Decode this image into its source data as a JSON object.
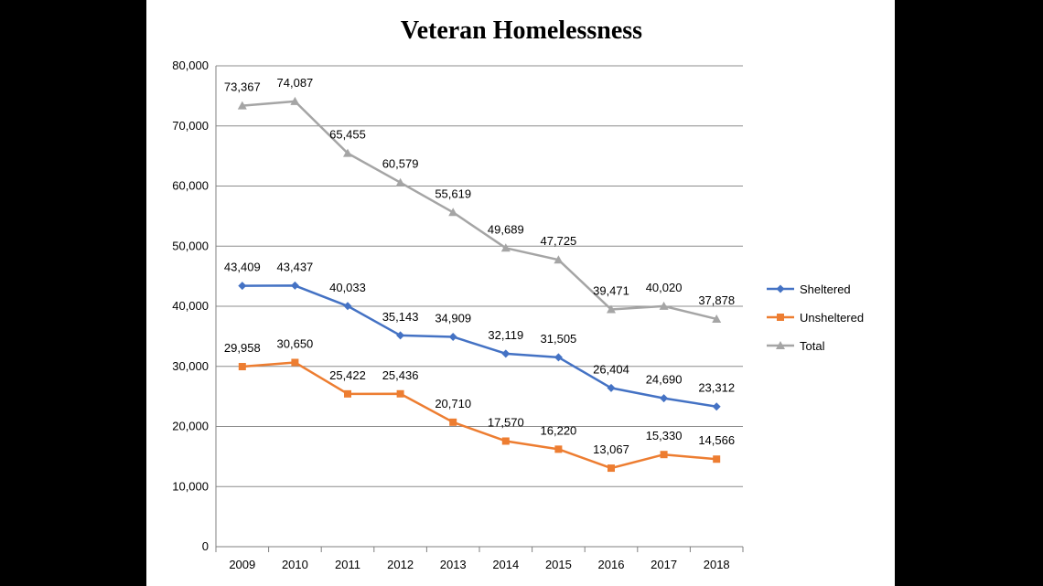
{
  "chart_data": {
    "type": "line",
    "title": "Veteran Homelessness",
    "xlabel": "",
    "ylabel": "",
    "categories": [
      "2009",
      "2010",
      "2011",
      "2012",
      "2013",
      "2014",
      "2015",
      "2016",
      "2017",
      "2018"
    ],
    "ylim": [
      0,
      80000
    ],
    "yticks": [
      0,
      10000,
      20000,
      30000,
      40000,
      50000,
      60000,
      70000,
      80000
    ],
    "ytick_labels": [
      "0",
      "10,000",
      "20,000",
      "30,000",
      "40,000",
      "50,000",
      "60,000",
      "70,000",
      "80,000"
    ],
    "grid": true,
    "legend_position": "right",
    "series": [
      {
        "name": "Sheltered",
        "color": "#4472C4",
        "marker": "diamond",
        "values": [
          43409,
          43437,
          40033,
          35143,
          34909,
          32119,
          31505,
          26404,
          24690,
          23312
        ],
        "labels": [
          "43,409",
          "43,437",
          "40,033",
          "35,143",
          "34,909",
          "32,119",
          "31,505",
          "26,404",
          "24,690",
          "23,312"
        ]
      },
      {
        "name": "Unsheltered",
        "color": "#ED7D31",
        "marker": "square",
        "values": [
          29958,
          30650,
          25422,
          25436,
          20710,
          17570,
          16220,
          13067,
          15330,
          14566
        ],
        "labels": [
          "29,958",
          "30,650",
          "25,422",
          "25,436",
          "20,710",
          "17,570",
          "16,220",
          "13,067",
          "15,330",
          "14,566"
        ]
      },
      {
        "name": "Total",
        "color": "#A5A5A5",
        "marker": "triangle",
        "values": [
          73367,
          74087,
          65455,
          60579,
          55619,
          49689,
          47725,
          39471,
          40020,
          37878
        ],
        "labels": [
          "73,367",
          "74,087",
          "65,455",
          "60,579",
          "55,619",
          "49,689",
          "47,725",
          "39,471",
          "40,020",
          "37,878"
        ]
      }
    ]
  }
}
